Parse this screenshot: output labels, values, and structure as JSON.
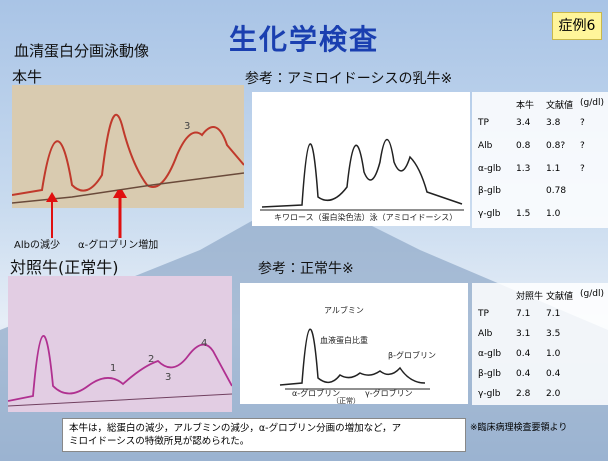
{
  "header": {
    "title": "生化学検査",
    "badge": "症例6",
    "section": "血清蛋白分画泳動像"
  },
  "case": {
    "label": "本牛",
    "peak_labels": [
      "3"
    ],
    "annotations": [
      "Albの減少",
      "α-グロブリン増加"
    ]
  },
  "control": {
    "label": "対照牛(正常牛)",
    "peak_labels": [
      "1",
      "2",
      "3",
      "4"
    ]
  },
  "reference_amyloid": {
    "title": "参考：アミロイドーシスの乳牛※",
    "caption": "キワロース（蛋白染色法）泳（アミロイドーシス）"
  },
  "reference_normal": {
    "title": "参考：正常牛※",
    "labels": [
      "アルブミン",
      "血液蛋白比重",
      "β-グロブリン",
      "α-グロブリン",
      "γ-グロブリン",
      "（正常）"
    ]
  },
  "table1": {
    "header": [
      "本牛",
      "文献値",
      "(g/dl)"
    ],
    "rows": [
      [
        "TP",
        "3.4",
        "3.8",
        "?"
      ],
      [
        "Alb",
        "0.8",
        "0.8?",
        "?"
      ],
      [
        "α-glb",
        "1.3",
        "1.1",
        "?"
      ],
      [
        "β-glb",
        "",
        "0.78",
        ""
      ],
      [
        "γ-glb",
        "1.5",
        "1.0",
        ""
      ]
    ]
  },
  "table2": {
    "header": [
      "対照牛",
      "文献値",
      "(g/dl)"
    ],
    "rows": [
      [
        "TP",
        "7.1",
        "7.1",
        ""
      ],
      [
        "Alb",
        "3.1",
        "3.5",
        ""
      ],
      [
        "α-glb",
        "0.4",
        "1.0",
        ""
      ],
      [
        "β-glb",
        "0.4",
        "0.4",
        ""
      ],
      [
        "γ-glb",
        "2.8",
        "2.0",
        ""
      ]
    ]
  },
  "footer": {
    "summary": [
      "本牛は，総蛋白の減少，アルブミンの減少，α-グロブリン分画の増加など，ア",
      "ミロイドーシスの特徴所見が認められた。"
    ],
    "source": "※臨床病理検査要領より"
  }
}
